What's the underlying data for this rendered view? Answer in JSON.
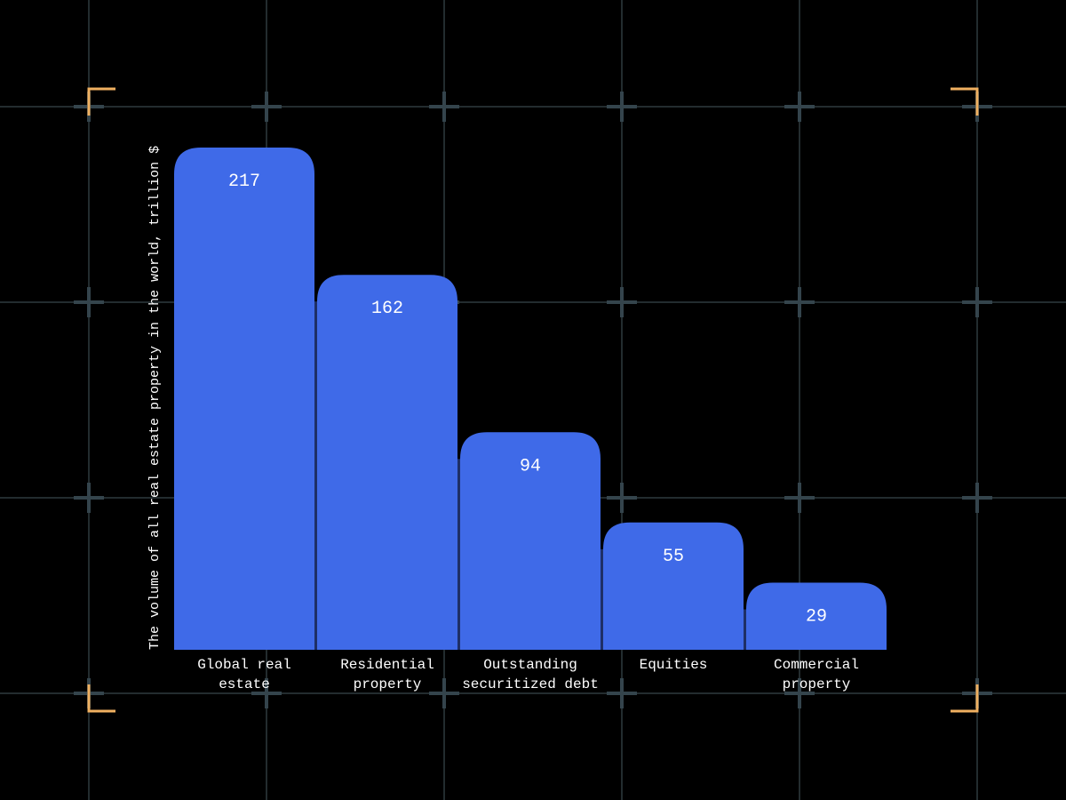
{
  "chart_data": {
    "type": "bar",
    "y_label": "The volume of all real estate property in the world, trillion $",
    "categories": [
      "Global real estate",
      "Residential property",
      "Outstanding securitized debt",
      "Equities",
      "Commercial property"
    ],
    "values": [
      217,
      162,
      94,
      55,
      29
    ],
    "color": "#3f6ae8"
  }
}
